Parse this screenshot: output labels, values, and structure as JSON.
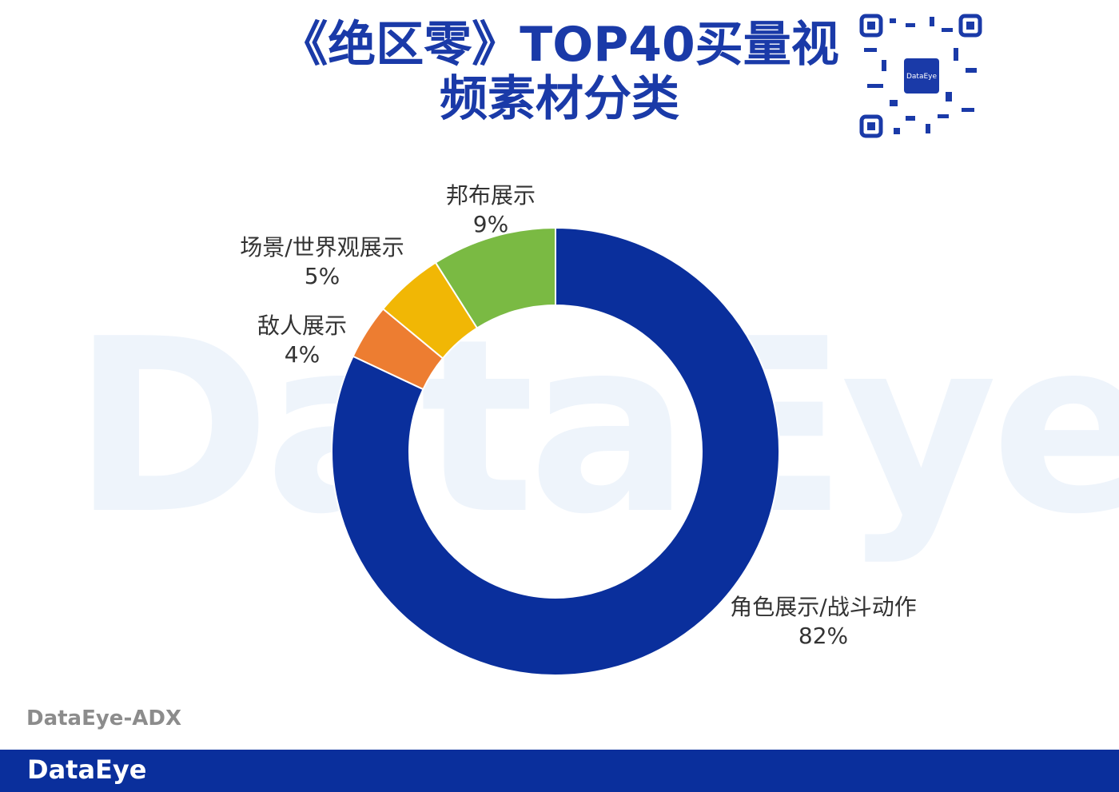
{
  "header": {
    "title": "《绝区零》TOP40买量视频素材分类"
  },
  "chart_data": {
    "type": "donut",
    "categories": [
      "角色展示/战斗动作",
      "敌人展示",
      "场景/世界观展示",
      "邦布展示"
    ],
    "values": [
      82,
      4,
      5,
      9
    ],
    "value_labels": [
      "82%",
      "4%",
      "5%",
      "9%"
    ],
    "colors": [
      "#0a2f9c",
      "#ed7d31",
      "#f1b705",
      "#7aba43"
    ]
  },
  "watermark": "DataEye",
  "qr_label": "DataEye",
  "source": "DataEye-ADX",
  "footer": {
    "brand": "DataEye"
  }
}
